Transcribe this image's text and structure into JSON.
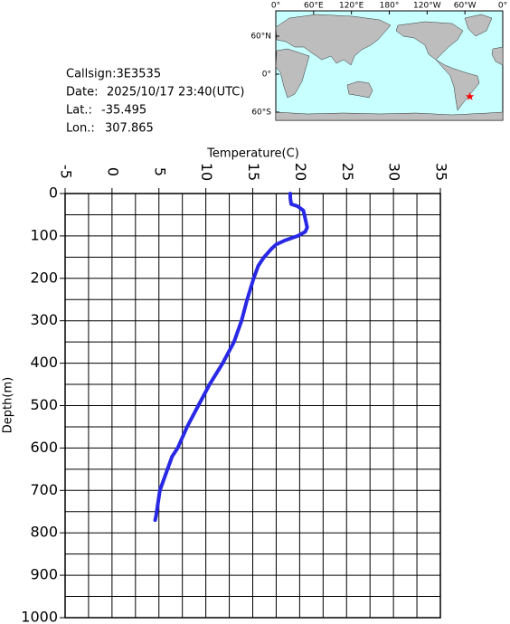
{
  "chart_data": {
    "type": "line",
    "xlabel": "Temperature(C)",
    "ylabel": "Depth(m)",
    "xlim": [
      -5,
      35
    ],
    "ylim": [
      0,
      1000
    ],
    "y_inverted": true,
    "xticks": [
      -5,
      0,
      5,
      10,
      15,
      20,
      25,
      30,
      35
    ],
    "xminor": [
      -2.5,
      2.5,
      7.5,
      12.5,
      17.5,
      22.5,
      27.5,
      32.5
    ],
    "yticks": [
      0,
      100,
      200,
      300,
      400,
      500,
      600,
      700,
      800,
      900,
      1000
    ],
    "yminor": [
      50,
      150,
      250,
      350,
      450,
      550,
      650,
      750,
      850,
      950
    ],
    "grid": true,
    "color": "#2828e6",
    "x": [
      19.0,
      19.0,
      19.1,
      19.8,
      20.4,
      20.6,
      20.8,
      20.6,
      19.8,
      18.5,
      17.5,
      17.0,
      16.2,
      15.6,
      15.1,
      14.4,
      13.8,
      13.0,
      11.8,
      10.4,
      9.2,
      8.0,
      7.0,
      6.4,
      5.1,
      4.7,
      4.6
    ],
    "y": [
      0,
      10,
      25,
      30,
      40,
      60,
      80,
      90,
      100,
      110,
      120,
      130,
      150,
      170,
      200,
      250,
      300,
      350,
      400,
      450,
      500,
      550,
      600,
      620,
      700,
      760,
      770
    ]
  },
  "info": {
    "callsign": "Callsign:3E3535",
    "date_label": "Date:",
    "date": "2025/10/17 23:40(UTC)",
    "lat_label": "Lat.:",
    "lat": -35.495,
    "lon_label": "Lon.:",
    "lon": 307.865
  },
  "map": {
    "lon_ticks": [
      {
        "value": 0,
        "label": "0°"
      },
      {
        "value": 60,
        "label": "60°E"
      },
      {
        "value": 120,
        "label": "120°E"
      },
      {
        "value": 180,
        "label": "180°"
      },
      {
        "value": 240,
        "label": "120°W"
      },
      {
        "value": 300,
        "label": "60°W"
      },
      {
        "value": 360,
        "label": "0°"
      }
    ],
    "lat_ticks": [
      {
        "value": 60,
        "label": "60°N"
      },
      {
        "value": 0,
        "label": "0°"
      },
      {
        "value": -60,
        "label": "60°S"
      }
    ],
    "marker_color": "#ff0000"
  }
}
